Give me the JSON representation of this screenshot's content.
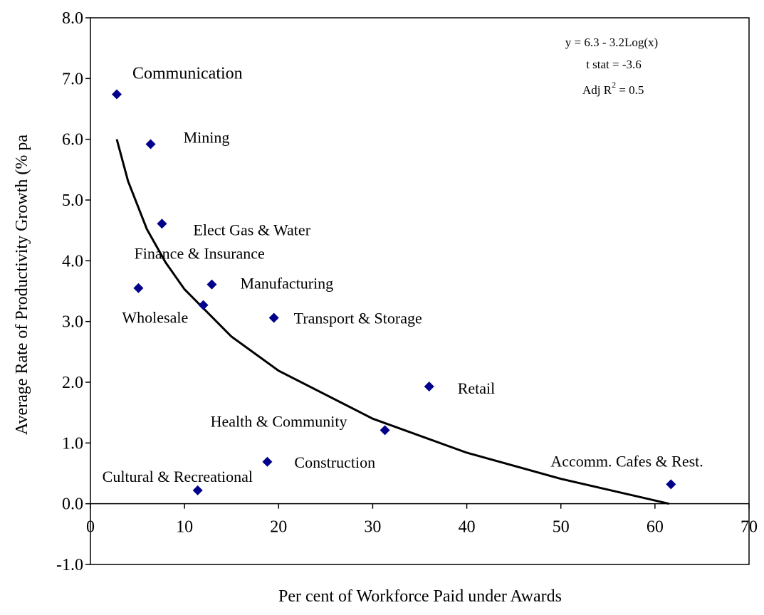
{
  "chart_data": {
    "type": "scatter",
    "x_label": "Per cent of Workforce Paid under Awards",
    "y_label": "Average Rate of Productivity Growth (% pa",
    "annotations": {
      "equation": "y =  6.3   -   3.2Log(x)",
      "t_stat": "t stat = -3.6",
      "r2": {
        "prefix": "Adj R",
        "sup": "2",
        "suffix": " = 0.5"
      }
    },
    "xlim": [
      0,
      70
    ],
    "ylim": [
      -1,
      8
    ],
    "xticks": [
      0,
      10,
      20,
      30,
      40,
      50,
      60,
      70
    ],
    "yticks": [
      {
        "value": -1,
        "label": "-1.0"
      },
      {
        "value": 0,
        "label": "0.0"
      },
      {
        "value": 1,
        "label": "1.0"
      },
      {
        "value": 2,
        "label": "2.0"
      },
      {
        "value": 3,
        "label": "3.0"
      },
      {
        "value": 4,
        "label": "4.0"
      },
      {
        "value": 5,
        "label": "5.0"
      },
      {
        "value": 6,
        "label": "6.0"
      },
      {
        "value": 7,
        "label": "7.0"
      },
      {
        "value": 8,
        "label": "8.0"
      }
    ],
    "points": {
      "color": "#00008b",
      "labels": [
        "Communication",
        "Mining",
        "Elect Gas & Water",
        "Finance & Insurance",
        "Manufacturing",
        "Wholesale",
        "Transport & Storage",
        "Retail",
        "Health & Community",
        "Construction",
        "Cultural & Recreational",
        "Accomm. Cafes & Rest."
      ],
      "x": [
        2.8,
        6.4,
        7.6,
        12.0,
        12.9,
        5.1,
        19.5,
        36.0,
        31.3,
        18.8,
        11.4,
        61.7
      ],
      "values": [
        6.74,
        5.92,
        4.61,
        3.27,
        3.61,
        3.55,
        3.06,
        1.93,
        1.21,
        0.69,
        0.22,
        0.32
      ]
    },
    "trend": {
      "color": "#000000",
      "x": [
        2.8,
        4,
        6,
        8,
        10,
        15,
        20,
        30,
        40,
        50,
        61.5
      ],
      "values": [
        6.0,
        5.31,
        4.52,
        3.97,
        3.53,
        2.75,
        2.19,
        1.4,
        0.84,
        0.41,
        0.0
      ]
    }
  }
}
